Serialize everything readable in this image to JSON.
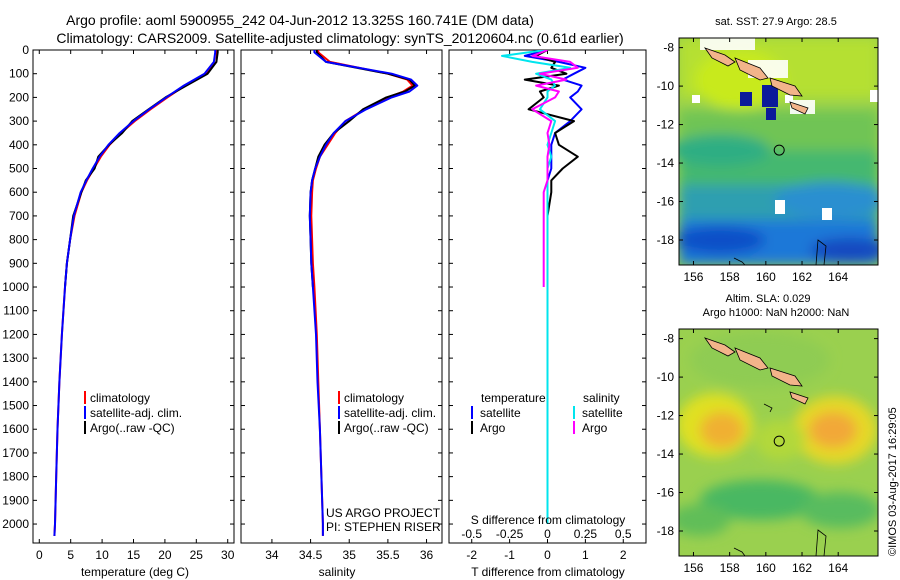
{
  "title": {
    "line1": "Argo profile: aoml 5900955_242 04-Jun-2012 13.325S 160.741E (DM data)",
    "line2": "Climatology: CARS2009. Satellite-adjusted climatology: synTS_20120604.nc (0.61d earlier)"
  },
  "colors": {
    "climatology": "#ff0000",
    "satellite": "#0000ff",
    "argo": "#000000",
    "salinity_satellite": "#00e5ee",
    "salinity_argo": "#ff00ff"
  },
  "chart_data": [
    {
      "type": "line",
      "name": "temperature-profile",
      "xlabel": "temperature (deg C)",
      "ylabel": "",
      "xlim": [
        -1,
        31
      ],
      "ylim": [
        2080,
        0
      ],
      "xticks": [
        "0",
        "5",
        "10",
        "15",
        "20",
        "25",
        "30"
      ],
      "yticks": [
        "0",
        "100",
        "200",
        "300",
        "400",
        "500",
        "600",
        "700",
        "800",
        "900",
        "1000",
        "1100",
        "1200",
        "1300",
        "1400",
        "1500",
        "1600",
        "1700",
        "1800",
        "1900",
        "2000"
      ],
      "depth": [
        0,
        10,
        50,
        100,
        150,
        200,
        250,
        300,
        350,
        400,
        450,
        500,
        550,
        600,
        700,
        800,
        900,
        1000,
        1200,
        1400,
        1600,
        1800,
        2000,
        2050
      ],
      "series": [
        {
          "name": "climatology",
          "values": [
            28.3,
            28.3,
            28.2,
            26.6,
            23.2,
            20.4,
            17.7,
            15.2,
            13.0,
            11.2,
            9.8,
            8.7,
            7.6,
            6.7,
            5.6,
            4.9,
            4.4,
            4.1,
            3.6,
            3.2,
            2.9,
            2.7,
            2.5,
            2.4
          ]
        },
        {
          "name": "satellite",
          "values": [
            28.0,
            28.0,
            27.8,
            26.3,
            23.0,
            20.2,
            17.5,
            15.0,
            12.8,
            11.0,
            9.6,
            8.5,
            7.5,
            6.6,
            5.5,
            4.9,
            4.4,
            4.1,
            3.6,
            3.2,
            2.9,
            2.7,
            2.5,
            2.4
          ]
        },
        {
          "name": "argo",
          "values": [
            28.4,
            28.4,
            28.2,
            26.8,
            23.4,
            20.1,
            17.4,
            14.8,
            13.2,
            11.1,
            9.4,
            8.8,
            7.4,
            6.7,
            5.4,
            4.9,
            4.4,
            4.1,
            null,
            null,
            null,
            null,
            null,
            null
          ]
        }
      ],
      "legend": [
        "climatology",
        "satellite-adj. clim.",
        "Argo(..raw -QC)"
      ]
    },
    {
      "type": "line",
      "name": "salinity-profile",
      "xlabel": "salinity",
      "xlim": [
        33.6,
        36.2
      ],
      "ylim": [
        2080,
        0
      ],
      "xticks": [
        "34",
        "34.5",
        "35",
        "35.5",
        "36"
      ],
      "depth": [
        0,
        10,
        50,
        100,
        125,
        150,
        175,
        200,
        250,
        300,
        350,
        400,
        450,
        500,
        550,
        600,
        700,
        800,
        900,
        1000,
        1200,
        1400,
        1600,
        1800,
        2000,
        2050
      ],
      "series": [
        {
          "name": "climatology",
          "values": [
            34.6,
            34.6,
            34.75,
            35.5,
            35.75,
            35.82,
            35.7,
            35.5,
            35.2,
            34.95,
            34.82,
            34.72,
            34.62,
            34.57,
            34.53,
            34.52,
            34.51,
            34.52,
            34.53,
            34.55,
            34.58,
            34.6,
            34.62,
            34.64,
            34.66,
            34.66
          ]
        },
        {
          "name": "satellite",
          "values": [
            34.55,
            34.55,
            34.7,
            35.55,
            35.8,
            35.88,
            35.78,
            35.55,
            35.22,
            34.95,
            34.8,
            34.7,
            34.62,
            34.56,
            34.52,
            34.5,
            34.49,
            34.5,
            34.51,
            34.53,
            34.57,
            34.59,
            34.62,
            34.64,
            34.66,
            34.66
          ]
        },
        {
          "name": "argo",
          "values": [
            34.58,
            34.58,
            34.7,
            35.5,
            35.78,
            35.85,
            35.72,
            35.48,
            35.18,
            35.0,
            34.8,
            34.68,
            34.6,
            34.56,
            34.52,
            34.5,
            34.49,
            34.5,
            34.51,
            34.53,
            null,
            null,
            null,
            null,
            null,
            null
          ]
        }
      ],
      "legend": [
        "climatology",
        "satellite-adj. clim.",
        "Argo(..raw -QC)"
      ],
      "annotation": [
        "US ARGO PROJECT",
        "PI: STEPHEN RISER"
      ]
    },
    {
      "type": "line",
      "name": "difference-profile",
      "xlabel": "T difference from climatology",
      "xlabel_top": "S difference from climatology",
      "xlim": [
        -2.6,
        2.6
      ],
      "ylim": [
        2080,
        0
      ],
      "xticks": [
        "-2",
        "-1",
        "0",
        "1",
        "2"
      ],
      "xticks_s": [
        "-0.5",
        "-0.25",
        "0",
        "0.25",
        "0.5"
      ],
      "depth": [
        0,
        25,
        50,
        75,
        100,
        125,
        150,
        175,
        200,
        250,
        300,
        350,
        400,
        450,
        500,
        550,
        600,
        700,
        800,
        900,
        1000,
        1200,
        1400,
        1600,
        1800,
        2000
      ],
      "series": [
        {
          "name": "temperature satellite",
          "values": [
            0.0,
            -0.6,
            0.3,
            1.0,
            0.7,
            0.4,
            0.9,
            0.8,
            0.6,
            0.9,
            0.6,
            0.2,
            0.1,
            0.1,
            0.1,
            0.0,
            0.0,
            0.0,
            0.0,
            0.0,
            0.0,
            0.0,
            0.0,
            0.0,
            0.0,
            0.0
          ]
        },
        {
          "name": "temperature argo",
          "values": [
            0.0,
            -0.3,
            0.2,
            0.1,
            0.5,
            -0.6,
            0.3,
            -0.2,
            -0.1,
            -0.5,
            0.7,
            0.2,
            0.3,
            0.8,
            0.4,
            0.1,
            0.1,
            0.0,
            0.0,
            0.0,
            0.0,
            null,
            null,
            null,
            null,
            null
          ]
        },
        {
          "name": "salinity satellite",
          "values": [
            -0.05,
            -1.2,
            -0.4,
            0.6,
            -0.3,
            0.1,
            0.2,
            0.0,
            0.0,
            -0.2,
            0.2,
            0.1,
            0.0,
            0.1,
            0.0,
            0.0,
            0.0,
            0.0,
            0.0,
            0.0,
            0.0,
            0.0,
            0.0,
            0.0,
            0.0,
            0.0
          ]
        },
        {
          "name": "salinity argo",
          "values": [
            0.0,
            -0.4,
            0.6,
            0.8,
            -0.2,
            0.5,
            -0.3,
            0.3,
            0.2,
            -0.4,
            0.1,
            0.0,
            0.05,
            0.0,
            0.0,
            0.0,
            -0.1,
            -0.1,
            -0.1,
            -0.1,
            -0.1,
            null,
            null,
            null,
            null,
            null
          ]
        }
      ],
      "legend_temperature": {
        "heading": "temperature",
        "items": [
          "satellite",
          "Argo"
        ]
      },
      "legend_salinity": {
        "heading": "salinity",
        "items": [
          "satellite",
          "Argo"
        ]
      }
    },
    {
      "type": "heatmap",
      "name": "sst-map",
      "title": "sat. SST: 27.9  Argo: 28.5",
      "xticks": [
        "156",
        "158",
        "160",
        "162",
        "164"
      ],
      "yticks": [
        "-8",
        "-10",
        "-12",
        "-14",
        "-16",
        "-18"
      ],
      "xlim": [
        155.2,
        166.2
      ],
      "ylim": [
        -19.3,
        -7.5
      ],
      "float_position": {
        "lon": 160.741,
        "lat": -13.325
      }
    },
    {
      "type": "heatmap",
      "name": "sla-map",
      "title": "Altim. SLA: 0.029",
      "subtitle": "Argo h1000: NaN h2000: NaN",
      "xticks": [
        "156",
        "158",
        "160",
        "162",
        "164"
      ],
      "yticks": [
        "-8",
        "-10",
        "-12",
        "-14",
        "-16",
        "-18"
      ],
      "xlim": [
        155.2,
        166.2
      ],
      "ylim": [
        -19.3,
        -7.5
      ],
      "float_position": {
        "lon": 160.741,
        "lat": -13.325
      }
    }
  ],
  "footer_stamp": "©IMOS 03-Aug-2017 16:29:05"
}
